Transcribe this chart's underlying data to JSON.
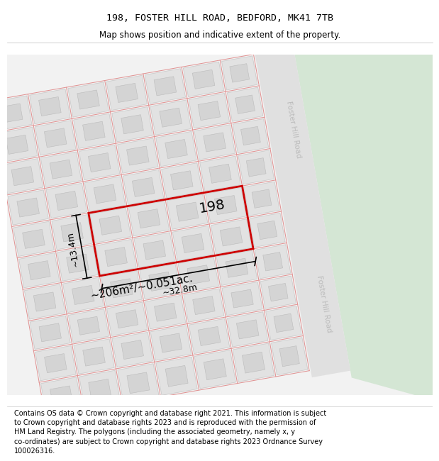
{
  "title_line1": "198, FOSTER HILL ROAD, BEDFORD, MK41 7TB",
  "title_line2": "Map shows position and indicative extent of the property.",
  "footer_text": "Contains OS data © Crown copyright and database right 2021. This information is subject to Crown copyright and database rights 2023 and is reproduced with the permission of HM Land Registry. The polygons (including the associated geometry, namely x, y co-ordinates) are subject to Crown copyright and database rights 2023 Ordnance Survey 100026316.",
  "map_bg": "#f2f2f2",
  "green_area_color": "#d4e6d4",
  "road_color": "#e0e0e0",
  "block_fill": "#e2e2e2",
  "block_edge": "#c8c8c8",
  "inner_block_fill": "#d4d4d4",
  "inner_block_edge": "#bbbbbb",
  "red_line_color": "#cc0000",
  "road_stripe_color": "#e09090",
  "road_label_color": "#bbbbbb",
  "road_label1": "Foster Hill Road",
  "road_label2": "Foster Hill Road",
  "area_label": "~206m²/~0.051ac.",
  "label_198": "198",
  "dim_width": "~32.8m",
  "dim_height": "~13.4m",
  "title_fontsize": 9.5,
  "subtitle_fontsize": 8.5,
  "footer_fontsize": 7.0
}
